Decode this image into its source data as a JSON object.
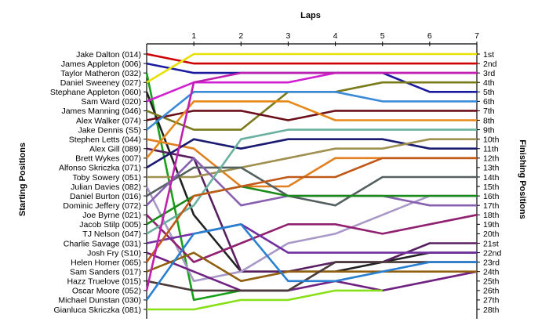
{
  "chart_data": {
    "type": "line",
    "title": "Laps",
    "xlabel": "Laps",
    "ylabel_left": "Starting Positions",
    "ylabel_right": "Finishing Positions",
    "x": [
      0,
      1,
      2,
      3,
      4,
      5,
      6,
      7
    ],
    "x_tick_labels": [
      "1",
      "2",
      "3",
      "4",
      "5",
      "6",
      "7"
    ],
    "y_range": [
      1,
      28
    ],
    "y_inverted": true,
    "grid": false,
    "starting_labels": [
      "Jake Dalton (014)",
      "James Appleton (006)",
      "Taylor Matheron (032)",
      "Daniel Sweeney (027)",
      "Stephane Appleton (060)",
      "Sam Ward (020)",
      "James Manning (046)",
      "Alex Walker (074)",
      "Jake Dennis (S5)",
      "Stephen Letts (044)",
      "Alex Gill (089)",
      "Brett Wykes (007)",
      "Alfonso Skriczka (071)",
      "Toby Sowery (051)",
      "Julian Davies (082)",
      "Daniel Burton (016)",
      "Dominic Jeffery (072)",
      "Joe Byrne (021)",
      "Jacob Stilp (005)",
      "TJ Nelson (047)",
      "Charlie Savage (031)",
      "Josh Fry (S10)",
      "Helen Horner (065)",
      "Sam Sanders (017)",
      "Hazz Truelove (015)",
      "Oscar Moore (052)",
      "Michael Dunstan (030)",
      "Gianluca Skriczka (081)"
    ],
    "finishing_labels": [
      "1st",
      "2nd",
      "3rd",
      "4th",
      "5th",
      "6th",
      "7th",
      "8th",
      "9th",
      "10th",
      "11th",
      "12th",
      "13th",
      "14th",
      "15th",
      "16th",
      "17th",
      "18th",
      "19th",
      "20th",
      "21st",
      "22nd",
      "23rd",
      "24th",
      "25th",
      "26th",
      "27th",
      "28th"
    ],
    "series": [
      {
        "positions": [
          1,
          2,
          2,
          2,
          2,
          2,
          2,
          2
        ],
        "color": "#cc0000"
      },
      {
        "positions": [
          2,
          3,
          3,
          3,
          3,
          3,
          5,
          5
        ],
        "color": "#1a1aa0"
      },
      {
        "positions": [
          3,
          27,
          26,
          26
        ],
        "color": "#18a018"
      },
      {
        "positions": [
          4,
          1,
          1,
          1,
          1,
          1,
          1,
          1
        ],
        "color": "#e8e000"
      },
      {
        "positions": [
          5,
          18,
          24,
          24,
          24,
          23,
          22,
          22
        ],
        "color": "#222222"
      },
      {
        "positions": [
          6,
          4,
          4,
          4,
          3,
          3,
          3,
          3
        ],
        "color": "#d020d0"
      },
      {
        "positions": [
          7,
          9,
          9,
          5,
          5,
          4,
          4,
          4
        ],
        "color": "#7a7a1a"
      },
      {
        "positions": [
          8,
          7,
          7,
          8,
          7,
          7,
          7,
          7
        ],
        "color": "#6a0f1a"
      },
      {
        "positions": [
          9,
          5,
          5,
          5,
          5,
          6,
          6,
          6
        ],
        "color": "#3a8ad8"
      },
      {
        "positions": [
          10,
          11,
          15,
          15,
          12,
          12,
          12,
          12
        ],
        "color": "#e08020"
      },
      {
        "positions": [
          11,
          12,
          24,
          24,
          23,
          23,
          21,
          21
        ],
        "color": "#582060"
      },
      {
        "positions": [
          12,
          6,
          6,
          6,
          8,
          8,
          8,
          8
        ],
        "color": "#e88818"
      },
      {
        "positions": [
          13,
          10,
          11,
          10,
          10,
          10,
          11,
          11
        ],
        "color": "#1a1a70"
      },
      {
        "positions": [
          14,
          14,
          13,
          12,
          11,
          11,
          10,
          10
        ],
        "color": "#a09050"
      },
      {
        "positions": [
          15,
          25,
          24,
          21,
          20,
          18,
          16,
          16
        ],
        "color": "#a898c8"
      },
      {
        "positions": [
          16,
          13,
          13,
          16,
          17,
          14,
          14,
          14
        ],
        "color": "#556060"
      },
      {
        "positions": [
          17,
          12,
          17,
          16,
          16,
          16,
          17,
          17
        ],
        "color": "#8860b0"
      },
      {
        "positions": [
          18,
          23,
          21,
          19,
          19,
          20,
          19,
          18
        ],
        "color": "#902070"
      },
      {
        "positions": [
          19,
          16,
          15,
          16,
          16,
          16,
          16,
          16
        ],
        "color": "#1a8a1a"
      },
      {
        "positions": [
          20,
          17,
          10,
          9,
          9,
          9,
          9,
          9
        ],
        "color": "#6ab0a0"
      },
      {
        "positions": [
          21,
          20,
          19,
          22,
          22,
          22,
          22,
          22
        ],
        "color": "#7030a0"
      },
      {
        "positions": [
          22,
          24,
          26,
          26,
          25,
          26,
          25,
          24
        ],
        "color": "#702080"
      },
      {
        "positions": [
          23,
          16,
          15,
          14,
          14,
          12,
          12,
          12
        ],
        "color": "#c05818"
      },
      {
        "positions": [
          24,
          22,
          25,
          24,
          24,
          24,
          24,
          24
        ],
        "color": "#906010"
      },
      {
        "positions": [
          25,
          26,
          26,
          26,
          23,
          23,
          23,
          23
        ],
        "color": "#4a3a3a"
      },
      {
        "positions": [
          26,
          4,
          3,
          3,
          3,
          3,
          3,
          3
        ],
        "color": "#c020b0"
      },
      {
        "positions": [
          27,
          20,
          19,
          25,
          25,
          24,
          23,
          23
        ],
        "color": "#2a80d0"
      },
      {
        "positions": [
          28,
          28,
          27,
          27,
          26,
          26
        ],
        "color": "#88e018"
      }
    ]
  }
}
